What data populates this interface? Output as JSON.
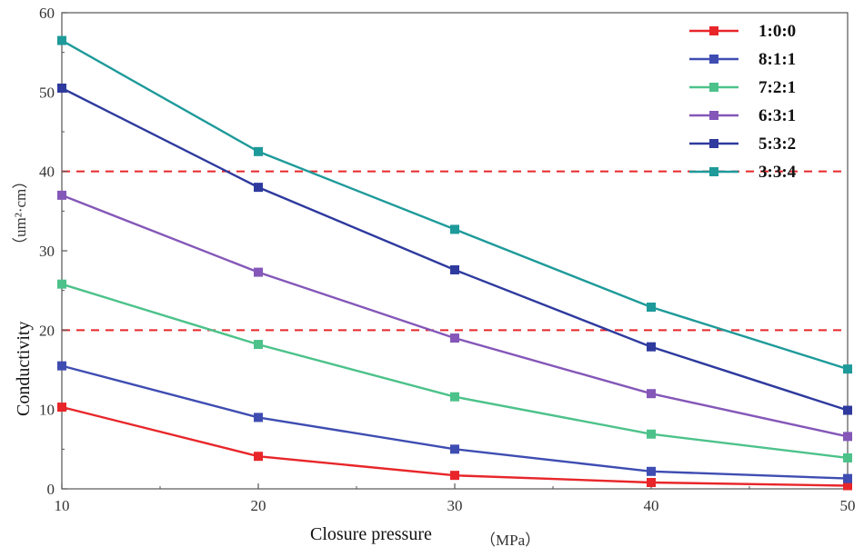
{
  "chart_data": {
    "type": "line",
    "title": "",
    "xlabel": "Closure pressure",
    "xlabel_unit": "（MPa）",
    "ylabel": "Conductivity",
    "ylabel_unit": "（um²·cm）",
    "x": [
      10,
      20,
      30,
      40,
      50
    ],
    "xlim": [
      10,
      50
    ],
    "ylim": [
      0,
      60
    ],
    "xticks": [
      "10",
      "20",
      "30",
      "40",
      "50"
    ],
    "yticks": [
      "0",
      "10",
      "20",
      "30",
      "40",
      "50",
      "60"
    ],
    "reference_lines": [
      20,
      40
    ],
    "legend_position": "top-right",
    "series": [
      {
        "name": "1:0:0",
        "color": "#e8262a",
        "values": [
          10.3,
          4.1,
          1.7,
          0.8,
          0.4
        ]
      },
      {
        "name": "8:1:1",
        "color": "#3f4db2",
        "values": [
          15.5,
          9.0,
          5.0,
          2.2,
          1.3
        ]
      },
      {
        "name": "7:2:1",
        "color": "#4cc28a",
        "values": [
          25.8,
          18.2,
          11.6,
          6.9,
          3.9
        ]
      },
      {
        "name": "6:3:1",
        "color": "#8457b8",
        "values": [
          37.0,
          27.3,
          19.0,
          12.0,
          6.6
        ]
      },
      {
        "name": "5:3:2",
        "color": "#2e3a9e",
        "values": [
          50.5,
          38.0,
          27.6,
          17.9,
          9.9
        ]
      },
      {
        "name": "3:3:4",
        "color": "#1e9a9a",
        "values": [
          56.5,
          42.5,
          32.7,
          22.9,
          15.1
        ]
      }
    ]
  }
}
